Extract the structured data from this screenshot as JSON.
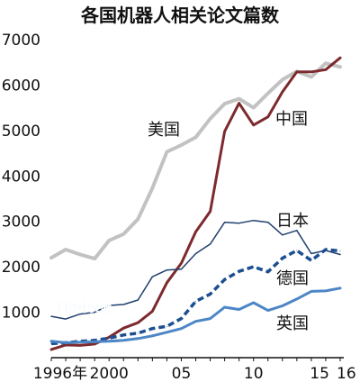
{
  "chart_data": {
    "type": "line",
    "title": "各国机器人相关论文篇数",
    "xlabel": "",
    "ylabel": "",
    "x": [
      1996,
      1997,
      1998,
      1999,
      2000,
      2001,
      2002,
      2003,
      2004,
      2005,
      2006,
      2007,
      2008,
      2009,
      2010,
      2011,
      2012,
      2013,
      2014,
      2015,
      2016
    ],
    "x_tick_labels": [
      {
        "x": 1996,
        "label": "1996年"
      },
      {
        "x": 2000,
        "label": "2000"
      },
      {
        "x": 2005,
        "label": "05"
      },
      {
        "x": 2010,
        "label": "10"
      },
      {
        "x": 2015,
        "label": "15"
      },
      {
        "x": 2016,
        "label": "16"
      }
    ],
    "ylim": [
      0,
      7000
    ],
    "y_ticks": [
      1000,
      2000,
      3000,
      4000,
      5000,
      6000,
      7000
    ],
    "grid": false,
    "legend": "inline labels",
    "series": [
      {
        "name": "美国",
        "color": "#c2c2c2",
        "dash": "solid",
        "width": 4,
        "values": [
          2200,
          2380,
          2270,
          2180,
          2580,
          2720,
          3050,
          3730,
          4530,
          4680,
          4850,
          5260,
          5590,
          5700,
          5500,
          5820,
          6120,
          6300,
          6180,
          6480,
          6400
        ]
      },
      {
        "name": "中国",
        "color": "#7d2a2e",
        "dash": "solid",
        "width": 3,
        "values": [
          180,
          280,
          270,
          300,
          450,
          650,
          770,
          1020,
          1650,
          2080,
          2770,
          3220,
          4980,
          5600,
          5120,
          5300,
          5850,
          6290,
          6290,
          6340,
          6600
        ]
      },
      {
        "name": "日本",
        "color": "#1f3f6e",
        "dash": "solid",
        "width": 1.5,
        "values": [
          910,
          850,
          960,
          1000,
          1150,
          1170,
          1270,
          1780,
          1930,
          1950,
          2290,
          2500,
          2980,
          2960,
          3020,
          2980,
          2700,
          2800,
          2290,
          2360,
          2270
        ]
      },
      {
        "name": "德国",
        "color": "#1c4f92",
        "dash": "dashed",
        "width": 3.5,
        "values": [
          310,
          330,
          360,
          380,
          430,
          500,
          540,
          640,
          690,
          860,
          1240,
          1400,
          1720,
          1900,
          2000,
          1890,
          2190,
          2360,
          2140,
          2380,
          2350
        ]
      },
      {
        "name": "英国",
        "color": "#4c86c6",
        "dash": "solid",
        "width": 3,
        "values": [
          360,
          330,
          340,
          350,
          360,
          380,
          420,
          480,
          560,
          640,
          800,
          860,
          1110,
          1060,
          1210,
          1040,
          1140,
          1290,
          1460,
          1470,
          1530
        ]
      }
    ]
  },
  "watermark": "日经中文网"
}
